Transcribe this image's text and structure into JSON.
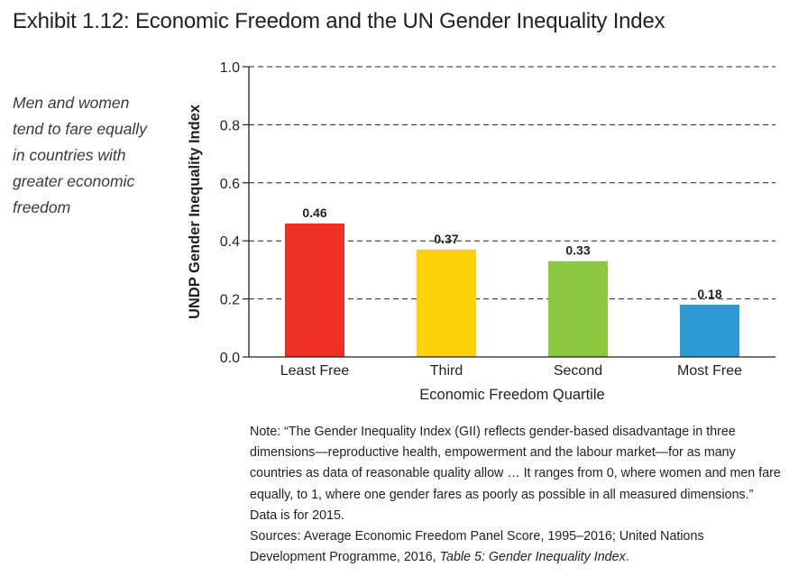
{
  "header": {
    "title": "Exhibit 1.12: Economic Freedom and the UN Gender Inequality Index"
  },
  "sidebar": {
    "caption": "Men and women tend to fare equally in countries with greater economic freedom"
  },
  "chart_data": {
    "type": "bar",
    "categories": [
      "Least Free",
      "Third",
      "Second",
      "Most Free"
    ],
    "values": [
      0.46,
      0.37,
      0.33,
      0.18
    ],
    "value_labels": [
      "0.46",
      "0.37",
      "0.33",
      "0.18"
    ],
    "bar_colors": [
      "#ee3124",
      "#fdd20a",
      "#8dc63f",
      "#2b9bd2"
    ],
    "xlabel": "Economic Freedom Quartile",
    "ylabel": "UNDP Gender Inequality Index",
    "ylim": [
      0,
      1.0
    ],
    "yticks": [
      "0.0",
      "0.2",
      "0.4",
      "0.6",
      "0.8",
      "1.0"
    ],
    "grid": "dashed horizontal"
  },
  "note": {
    "text": "Note: “The Gender Inequality Index (GII) reflects gender-based disadvantage in three dimensions—reproductive health, empowerment and the labour market—for as many countries as data of reasonable quality allow … It ranges from 0, where women and men fare equally, to 1, where one gender fares as poorly as possible in all measured dimensions.” Data is for 2015.",
    "sources_prefix": "Sources: Average Economic Freedom Panel Score, 1995–2016; United Nations Development Programme, 2016, ",
    "sources_italic": "Table 5: Gender Inequality Index",
    "sources_suffix": "."
  }
}
